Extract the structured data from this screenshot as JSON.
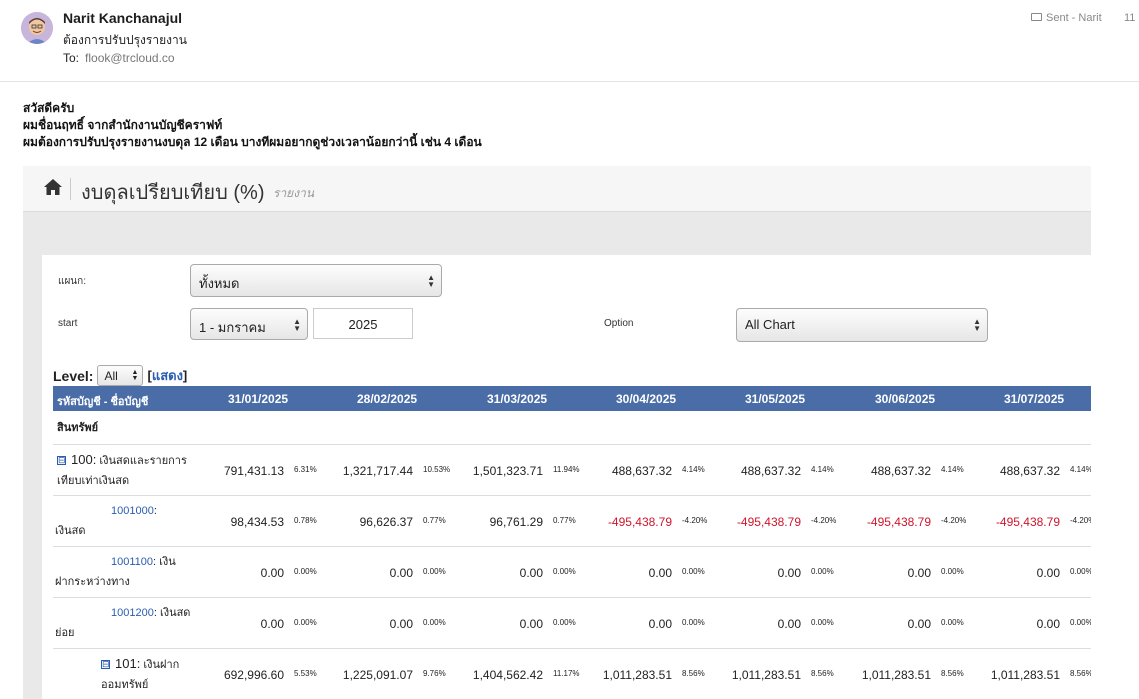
{
  "email": {
    "sender": "Narit Kanchanajul",
    "subject": "ต้องการปรับปรุงรายงาน",
    "to_label": "To:",
    "to_address": "flook@trcloud.co",
    "mailbox": "Sent - Narit",
    "time": "11 ."
  },
  "message": {
    "line1": "สวัสดีครับ",
    "line2": "ผมชื่อนฤทธิ์ จากสำนักงานบัญชีคราฟท์",
    "line3": "ผมต้องการปรับปรุงรายงานงบดุล 12 เดือน บางทีผมอยากดูช่วงเวลาน้อยกว่านี้ เช่น 4 เดือน"
  },
  "report": {
    "title": "งบดุลเปรียบเทียบ (%)",
    "subtitle": "รายงาน",
    "department_label": "แผนก:",
    "department_value": "ทั้งหมด",
    "start_label": "start",
    "start_month": "1 - มกราคม",
    "start_year": "2025",
    "option_label": "Option",
    "option_value": "All Chart",
    "level_label": "Level:",
    "level_value": "All",
    "show_link_open": "[",
    "show_link": "แสดง",
    "show_link_close": "]",
    "col_account": "รหัสบัญชี - ชื่อบัญชี",
    "columns": [
      "31/01/2025",
      "28/02/2025",
      "31/03/2025",
      "30/04/2025",
      "31/05/2025",
      "30/06/2025",
      "31/07/2025"
    ],
    "section": "สินทรัพย์",
    "rows": [
      {
        "toggle": "⊟",
        "code": "100:",
        "name_a": "เงินสดและรายการ",
        "name_b": "เทียบเท่าเงินสด",
        "values": [
          "791,431.13",
          "1,321,717.44",
          "1,501,323.71",
          "488,637.32",
          "488,637.32",
          "488,637.32",
          "488,637.32"
        ],
        "pcts": [
          "6.31%",
          "10.53%",
          "11.94%",
          "4.14%",
          "4.14%",
          "4.14%",
          "4.14%"
        ]
      },
      {
        "code": "1001000",
        "sep": ":",
        "name_b": "เงินสด",
        "values": [
          "98,434.53",
          "96,626.37",
          "96,761.29",
          "-495,438.79",
          "-495,438.79",
          "-495,438.79",
          "-495,438.79"
        ],
        "pcts": [
          "0.78%",
          "0.77%",
          "0.77%",
          "-4.20%",
          "-4.20%",
          "-4.20%",
          "-4.20%"
        ]
      },
      {
        "code": "1001100",
        "sep": ": เงิน",
        "name_b": "ฝากระหว่างทาง",
        "values": [
          "0.00",
          "0.00",
          "0.00",
          "0.00",
          "0.00",
          "0.00",
          "0.00"
        ],
        "pcts": [
          "0.00%",
          "0.00%",
          "0.00%",
          "0.00%",
          "0.00%",
          "0.00%",
          "0.00%"
        ]
      },
      {
        "code": "1001200",
        "sep": ": เงินสด",
        "name_b": "ย่อย",
        "values": [
          "0.00",
          "0.00",
          "0.00",
          "0.00",
          "0.00",
          "0.00",
          "0.00"
        ],
        "pcts": [
          "0.00%",
          "0.00%",
          "0.00%",
          "0.00%",
          "0.00%",
          "0.00%",
          "0.00%"
        ]
      },
      {
        "toggle": "⊟",
        "code": "101:",
        "name_a": "เงินฝาก",
        "name_b": "ออมทรัพย์",
        "values": [
          "692,996.60",
          "1,225,091.07",
          "1,404,562.42",
          "1,011,283.51",
          "1,011,283.51",
          "1,011,283.51",
          "1,011,283.51"
        ],
        "pcts": [
          "5.53%",
          "9.76%",
          "11.17%",
          "8.56%",
          "8.56%",
          "8.56%",
          "8.56%"
        ]
      }
    ]
  }
}
